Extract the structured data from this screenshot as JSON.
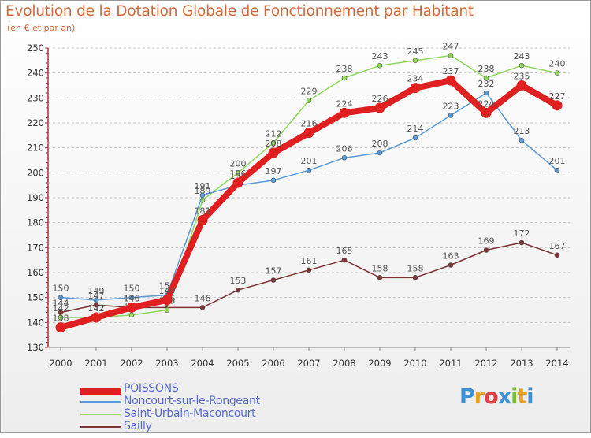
{
  "title": "Evolution de la Dotation Globale de Fonctionnement par Habitant",
  "subtitle": "(en € et par an)",
  "logo": {
    "text": "Proxiti",
    "letters": [
      "P",
      "r",
      "o",
      "x",
      "i",
      "t",
      "i"
    ],
    "colors": [
      "#3d8fd6",
      "#e8a020",
      "#e04040",
      "#3d8fd6",
      "#7abf34",
      "#e8a020",
      "#3d8fd6"
    ]
  },
  "chart_data": {
    "type": "line",
    "title": "Evolution de la Dotation Globale de Fonctionnement par Habitant",
    "xlabel": "",
    "ylabel": "(en € et par an)",
    "ylim": [
      130,
      250
    ],
    "yticks": [
      130,
      140,
      150,
      160,
      170,
      180,
      190,
      200,
      210,
      220,
      230,
      240,
      250
    ],
    "grid": "horizontal dashed",
    "x": [
      "2000",
      "2001",
      "2002",
      "2003",
      "2004",
      "2005",
      "2006",
      "2007",
      "2008",
      "2009",
      "2010",
      "2011",
      "2012",
      "2013",
      "2014"
    ],
    "series": [
      {
        "name": "Sailly",
        "color": "#7d3333",
        "values": [
          144,
          147,
          146,
          146,
          146,
          153,
          157,
          161,
          165,
          158,
          158,
          163,
          169,
          172,
          167
        ],
        "labels": [
          "144",
          "147",
          "146",
          "146",
          "146",
          "153",
          "157",
          "161",
          "165",
          "158",
          "158",
          "163",
          "169",
          "172",
          "167"
        ]
      },
      {
        "name": "Saint-Urbain-Maconcourt",
        "color": "#8ed85a",
        "values": [
          142,
          142,
          143,
          145,
          189,
          200,
          212,
          229,
          238,
          243,
          245,
          247,
          238,
          243,
          240
        ],
        "labels": [
          "142",
          "142",
          "143",
          "145",
          "189",
          "200",
          "212",
          "229",
          "238",
          "243",
          "245",
          "247",
          "238",
          "243",
          "240"
        ]
      },
      {
        "name": "Noncourt-sur-le-Rongeant",
        "color": "#5b9bd5",
        "values": [
          150,
          149,
          150,
          151,
          191,
          195,
          197,
          201,
          206,
          208,
          214,
          223,
          232,
          213,
          201
        ],
        "labels": [
          "150",
          "149",
          "150",
          "151",
          "191",
          "195",
          "197",
          "201",
          "206",
          "208",
          "214",
          "223",
          "232",
          "213",
          "201"
        ]
      },
      {
        "name": "POISSONS",
        "color": "#e02020",
        "values": [
          138,
          142,
          146,
          149,
          181,
          196,
          208,
          216,
          224,
          226,
          234,
          237,
          224,
          235,
          227
        ],
        "labels": [
          "138",
          "142",
          "146",
          "149",
          "181",
          "196",
          "208",
          "216",
          "224",
          "226",
          "234",
          "237",
          "224",
          "235",
          "227"
        ]
      }
    ]
  },
  "legend": [
    {
      "label": "POISSONS",
      "color": "#e02020"
    },
    {
      "label": "Noncourt-sur-le-Rongeant",
      "color": "#5b9bd5"
    },
    {
      "label": "Saint-Urbain-Maconcourt",
      "color": "#8ed85a"
    },
    {
      "label": "Sailly",
      "color": "#7d3333"
    }
  ]
}
